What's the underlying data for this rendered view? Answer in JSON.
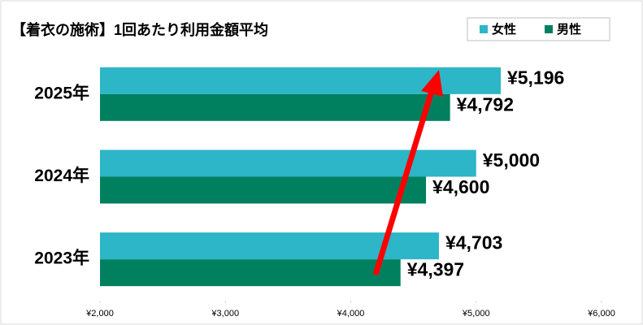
{
  "chart_data": {
    "type": "bar",
    "orientation": "horizontal",
    "title": "【着衣の施術】1回あたり利用金額平均",
    "categories": [
      "2025年",
      "2024年",
      "2023年"
    ],
    "series": [
      {
        "name": "女性",
        "color": "#2cb6c8",
        "values": [
          5196,
          5000,
          4703
        ],
        "value_labels": [
          "¥5,196",
          "¥5,000",
          "¥4,703"
        ]
      },
      {
        "name": "男性",
        "color": "#00805f",
        "values": [
          4792,
          4600,
          4397
        ],
        "value_labels": [
          "¥4,792",
          "¥4,600",
          "¥4,397"
        ]
      }
    ],
    "xlim": [
      2000,
      6000
    ],
    "xticks": [
      {
        "value": 2000,
        "label": "¥2,000"
      },
      {
        "value": 3000,
        "label": "¥3,000"
      },
      {
        "value": 4000,
        "label": "¥4,000"
      },
      {
        "value": 5000,
        "label": "¥5,000"
      },
      {
        "value": 6000,
        "label": "¥6,000"
      }
    ],
    "legend": "top-right"
  }
}
